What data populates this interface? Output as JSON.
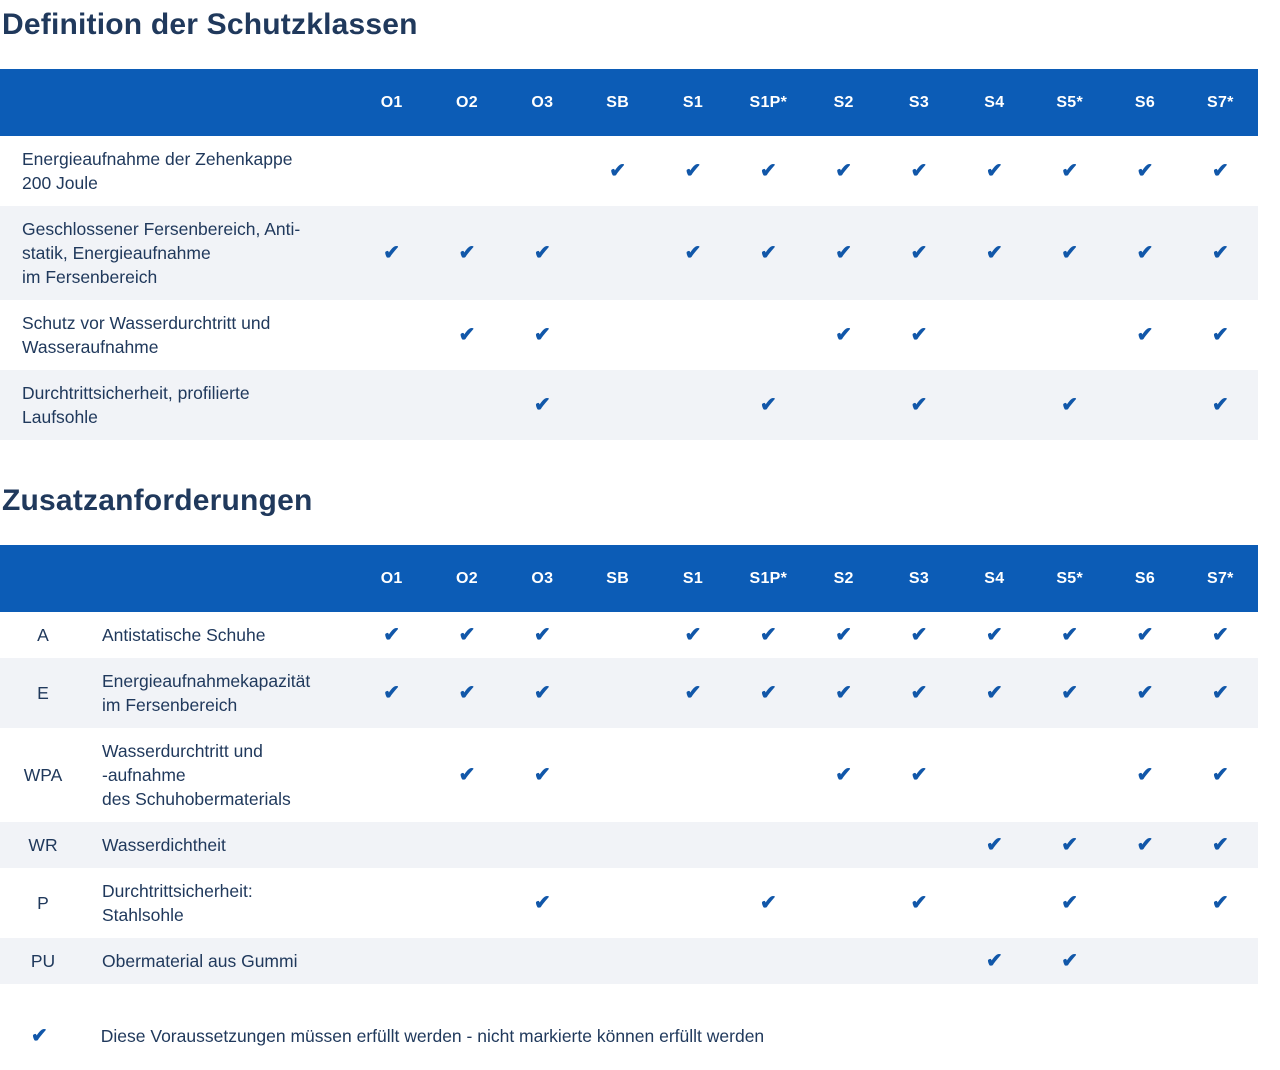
{
  "columns": [
    "O1",
    "O2",
    "O3",
    "SB",
    "S1",
    "S1P*",
    "S2",
    "S3",
    "S4",
    "S5*",
    "S6",
    "S7*"
  ],
  "sections": [
    {
      "title": "Definition der Schutzklassen",
      "rows": [
        {
          "label": "Energieaufnahme der Zehenkappe\n200 Joule",
          "checks": [
            0,
            0,
            0,
            1,
            1,
            1,
            1,
            1,
            1,
            1,
            1,
            1
          ]
        },
        {
          "label": "Geschlossener Fersenbereich, Anti-\nstatik, Energieaufnahme\nim Fersenbereich",
          "checks": [
            1,
            1,
            1,
            0,
            1,
            1,
            1,
            1,
            1,
            1,
            1,
            1
          ]
        },
        {
          "label": "Schutz vor Wasserdurchtritt und\nWasseraufnahme",
          "checks": [
            0,
            1,
            1,
            0,
            0,
            0,
            1,
            1,
            0,
            0,
            1,
            1
          ]
        },
        {
          "label": "Durchtrittsicherheit, profilierte\nLaufsohle",
          "checks": [
            0,
            0,
            1,
            0,
            0,
            1,
            0,
            1,
            0,
            1,
            0,
            1
          ]
        }
      ]
    },
    {
      "title": "Zusatzanforderungen",
      "rows": [
        {
          "code": "A",
          "label": "Antistatische Schuhe",
          "checks": [
            1,
            1,
            1,
            0,
            1,
            1,
            1,
            1,
            1,
            1,
            1,
            1
          ]
        },
        {
          "code": "E",
          "label": "Energieaufnahmekapazität\nim Fersenbereich",
          "checks": [
            1,
            1,
            1,
            0,
            1,
            1,
            1,
            1,
            1,
            1,
            1,
            1
          ]
        },
        {
          "code": "WPA",
          "label": "Wasserdurchtritt und\n-aufnahme\ndes Schuhobermaterials",
          "checks": [
            0,
            1,
            1,
            0,
            0,
            0,
            1,
            1,
            0,
            0,
            1,
            1
          ]
        },
        {
          "code": "WR",
          "label": "Wasserdichtheit",
          "checks": [
            0,
            0,
            0,
            0,
            0,
            0,
            0,
            0,
            1,
            1,
            1,
            1
          ]
        },
        {
          "code": "P",
          "label": "Durchtrittsicherheit:\nStahlsohle",
          "checks": [
            0,
            0,
            1,
            0,
            0,
            1,
            0,
            1,
            0,
            1,
            0,
            1
          ]
        },
        {
          "code": "PU",
          "label": "Obermaterial aus Gummi",
          "checks": [
            0,
            0,
            0,
            0,
            0,
            0,
            0,
            0,
            1,
            1,
            0,
            0
          ]
        }
      ]
    }
  ],
  "legend": {
    "text": "Diese Voraussetzungen müssen erfüllt werden - nicht markierte können erfüllt werden"
  },
  "icons": {
    "check": "✔"
  },
  "colors": {
    "header_blue": "#0c5cb6",
    "check_blue": "#1157a9",
    "text_navy": "#20395c",
    "row_alt": "#f1f3f7"
  }
}
